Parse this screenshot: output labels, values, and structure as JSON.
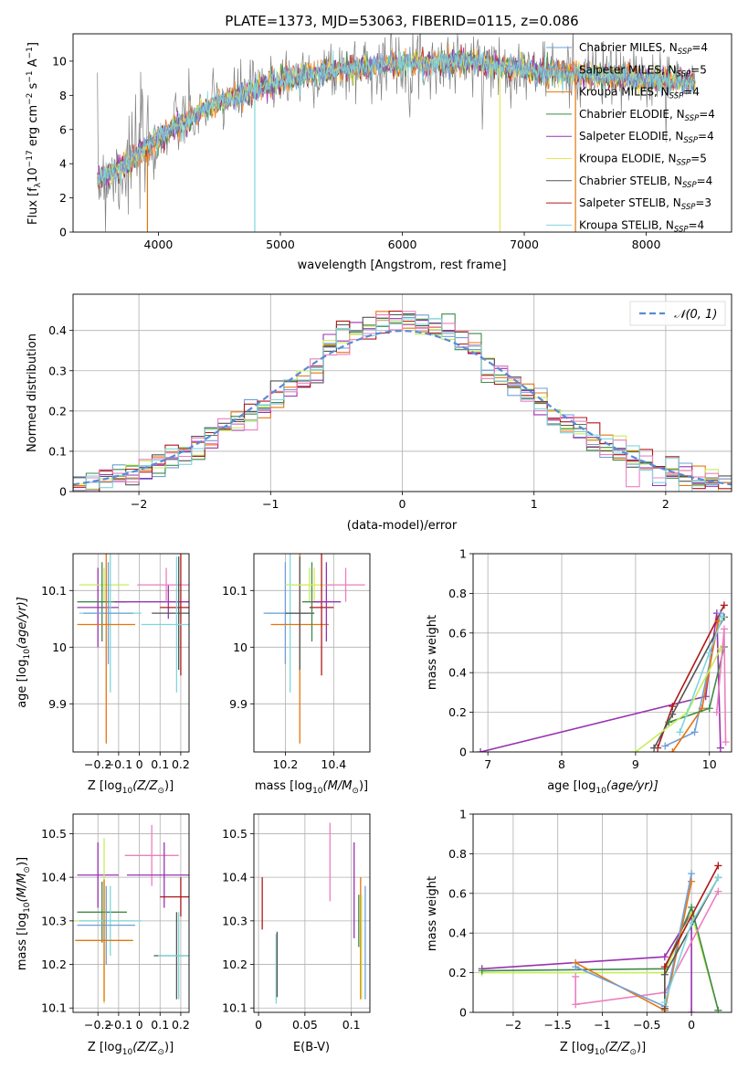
{
  "colors": {
    "Chabrier MILES": "#6f9fd8",
    "Salpeter MILES": "#ff8a3a",
    "Kroupa MILES": "#e8740c",
    "Chabrier ELODIE": "#3f8a4a",
    "Salpeter ELODIE": "#9932b0",
    "Kroupa ELODIE": "#e5e55a",
    "Chabrier STELIB": "#555555",
    "Salpeter STELIB": "#b01818",
    "Kroupa STELIB": "#7fd6dc",
    "pink": "#ec7fbf",
    "lime": "#c5ee5a",
    "grid": "#b0b0b0",
    "normal_curve": "#5b8ad6"
  },
  "chart_data": [
    {
      "id": "spectrum",
      "type": "line",
      "title": "PLATE=1373, MJD=53063, FIBERID=0115, z=0.086",
      "xlabel": "wavelength [Angstrom, rest frame]",
      "ylabel_parts": [
        "Flux [f",
        "λ",
        "10",
        "−17",
        " erg cm",
        "−2",
        " s",
        "−1",
        " A",
        "−1",
        "]"
      ],
      "xlim": [
        3300,
        8700
      ],
      "ylim": [
        0,
        11.6
      ],
      "xticks": [
        4000,
        5000,
        6000,
        7000,
        8000
      ],
      "yticks": [
        0,
        2,
        4,
        6,
        8,
        10
      ],
      "grid": false,
      "legend_position": "upper-right",
      "legend": [
        {
          "label": "Chabrier MILES, N",
          "sub": "SSP",
          "tail": "=4",
          "color_key": "Chabrier MILES"
        },
        {
          "label": "Salpeter MILES, N",
          "sub": "SSP",
          "tail": "=5",
          "color_key": "Salpeter MILES"
        },
        {
          "label": "Kroupa MILES, N",
          "sub": "SSP",
          "tail": "=4",
          "color_key": "Kroupa MILES"
        },
        {
          "label": "Chabrier ELODIE, N",
          "sub": "SSP",
          "tail": "=4",
          "color_key": "Chabrier ELODIE"
        },
        {
          "label": "Salpeter ELODIE, N",
          "sub": "SSP",
          "tail": "=4",
          "color_key": "Salpeter ELODIE"
        },
        {
          "label": "Kroupa ELODIE, N",
          "sub": "SSP",
          "tail": "=5",
          "color_key": "Kroupa ELODIE"
        },
        {
          "label": "Chabrier STELIB, N",
          "sub": "SSP",
          "tail": "=4",
          "color_key": "Chabrier STELIB"
        },
        {
          "label": "Salpeter STELIB, N",
          "sub": "SSP",
          "tail": "=3",
          "color_key": "Salpeter STELIB"
        },
        {
          "label": "Kroupa STELIB, N",
          "sub": "SSP",
          "tail": "=4",
          "color_key": "Kroupa STELIB"
        }
      ],
      "continuum": [
        [
          3500,
          3.1
        ],
        [
          3700,
          3.7
        ],
        [
          3900,
          5.0
        ],
        [
          4100,
          6.0
        ],
        [
          4300,
          6.8
        ],
        [
          4500,
          7.6
        ],
        [
          4700,
          8.1
        ],
        [
          5000,
          8.9
        ],
        [
          5300,
          9.3
        ],
        [
          5600,
          9.6
        ],
        [
          5900,
          9.8
        ],
        [
          6200,
          9.9
        ],
        [
          6500,
          10.0
        ],
        [
          6800,
          9.7
        ],
        [
          7100,
          9.4
        ],
        [
          7400,
          9.3
        ],
        [
          7700,
          9.1
        ],
        [
          8000,
          9.0
        ],
        [
          8300,
          8.8
        ],
        [
          8500,
          8.8
        ]
      ],
      "sharp_dips": [
        [
          3910,
          0.0
        ],
        [
          4790,
          0.0
        ],
        [
          6800,
          0.0
        ],
        [
          7420,
          0.0
        ]
      ]
    },
    {
      "id": "residuals",
      "type": "bar",
      "xlabel": "(data-model)/error",
      "ylabel": "Normed distribution",
      "xlim": [
        -2.5,
        2.5
      ],
      "ylim": [
        0,
        0.49
      ],
      "xticks": [
        -2,
        -1,
        0,
        1,
        2
      ],
      "yticks": [
        0.0,
        0.1,
        0.2,
        0.3,
        0.4
      ],
      "grid": true,
      "legend_position": "upper-right",
      "legend_label": "𝒩(0, 1)",
      "bin_width": 0.1,
      "bin_start": -2.5
    },
    {
      "id": "age_vs_Z",
      "type": "scatter",
      "xlabel_parts": [
        "Z [log",
        "10",
        "(Z/Z",
        "⊙",
        ")]"
      ],
      "ylabel_parts": [
        "age  [log",
        "10",
        "(age/yr)]"
      ],
      "xlim": [
        -0.32,
        0.24
      ],
      "ylim": [
        9.815,
        10.165
      ],
      "xticks": [
        -0.2,
        -0.1,
        0.0,
        0.1,
        0.2
      ],
      "yticks": [
        9.9,
        10.0,
        10.1
      ],
      "grid": true,
      "errorbars": [
        {
          "x": -0.2,
          "xerr": 0.1,
          "y": 10.07,
          "yerr": 0.07,
          "color_key": "Salpeter ELODIE"
        },
        {
          "x": -0.17,
          "xerr": 0.12,
          "y": 10.11,
          "yerr": 0.03,
          "color_key": "lime"
        },
        {
          "x": -0.18,
          "xerr": 0.12,
          "y": 10.08,
          "yerr": 0.07,
          "color_key": "Chabrier ELODIE"
        },
        {
          "x": -0.14,
          "xerr": 0.15,
          "y": 10.06,
          "yerr": 0.14,
          "color_key": "Kroupa STELIB"
        },
        {
          "x": -0.15,
          "xerr": 0.12,
          "y": 10.06,
          "yerr": 0.09,
          "color_key": "Chabrier MILES"
        },
        {
          "x": -0.16,
          "xerr": 0.14,
          "y": 10.04,
          "yerr": 0.21,
          "color_key": "Kroupa MILES"
        },
        {
          "x": 0.14,
          "xerr": 0.26,
          "y": 10.08,
          "yerr": 0.03,
          "color_key": "Salpeter ELODIE"
        },
        {
          "x": 0.13,
          "xerr": 0.14,
          "y": 10.11,
          "yerr": 0.03,
          "color_key": "pink"
        },
        {
          "x": 0.2,
          "xerr": 0.1,
          "y": 10.07,
          "yerr": 0.12,
          "color_key": "Salpeter STELIB"
        },
        {
          "x": 0.19,
          "xerr": 0.13,
          "y": 10.06,
          "yerr": 0.1,
          "color_key": "Chabrier STELIB"
        },
        {
          "x": 0.18,
          "xerr": 0.17,
          "y": 10.04,
          "yerr": 0.12,
          "color_key": "Kroupa STELIB"
        }
      ]
    },
    {
      "id": "age_vs_mass",
      "type": "scatter",
      "xlabel_parts": [
        "mass [log",
        "10",
        "(M/M",
        "⊙",
        ")]"
      ],
      "xlim": [
        10.07,
        10.55
      ],
      "ylim": [
        9.815,
        10.165
      ],
      "xticks": [
        10.2,
        10.4
      ],
      "yticks": [
        9.9,
        10.0,
        10.1
      ],
      "grid": true,
      "errorbars": [
        {
          "x": 10.22,
          "xerr": 0.1,
          "y": 10.06,
          "yerr": 0.14,
          "color_key": "Kroupa STELIB"
        },
        {
          "x": 10.2,
          "xerr": 0.09,
          "y": 10.06,
          "yerr": 0.09,
          "color_key": "Chabrier MILES"
        },
        {
          "x": 10.26,
          "xerr": 0.12,
          "y": 10.04,
          "yerr": 0.21,
          "color_key": "Kroupa MILES"
        },
        {
          "x": 10.26,
          "xerr": 0.06,
          "y": 10.06,
          "yerr": 0.1,
          "color_key": "Chabrier STELIB"
        },
        {
          "x": 10.3,
          "xerr": 0.1,
          "y": 10.11,
          "yerr": 0.03,
          "color_key": "lime"
        },
        {
          "x": 10.31,
          "xerr": 0.04,
          "y": 10.08,
          "yerr": 0.07,
          "color_key": "Chabrier ELODIE"
        },
        {
          "x": 10.32,
          "xerr": 0.04,
          "y": 10.11,
          "yerr": 0.03,
          "color_key": "Kroupa ELODIE"
        },
        {
          "x": 10.35,
          "xerr": 0.05,
          "y": 10.07,
          "yerr": 0.12,
          "color_key": "Salpeter STELIB"
        },
        {
          "x": 10.37,
          "xerr": 0.06,
          "y": 10.08,
          "yerr": 0.07,
          "color_key": "Salpeter ELODIE"
        },
        {
          "x": 10.45,
          "xerr": 0.08,
          "y": 10.11,
          "yerr": 0.03,
          "color_key": "pink"
        }
      ]
    },
    {
      "id": "weight_vs_age",
      "type": "line",
      "xlabel_parts": [
        "age  [log",
        "10",
        "(age/yr)]"
      ],
      "ylabel": "mass weight",
      "xlim": [
        6.8,
        10.3
      ],
      "ylim": [
        0,
        1.0
      ],
      "xticks": [
        7,
        8,
        9,
        10
      ],
      "yticks": [
        0.0,
        0.2,
        0.4,
        0.6,
        0.8,
        1.0
      ],
      "grid": true,
      "series": [
        {
          "color_key": "Salpeter ELODIE",
          "points": [
            [
              6.9,
              0.0
            ],
            [
              9.95,
              0.28
            ],
            [
              10.1,
              0.7
            ],
            [
              10.15,
              0.02
            ]
          ]
        },
        {
          "color_key": "Salpeter STELIB",
          "points": [
            [
              9.3,
              0.02
            ],
            [
              9.5,
              0.23
            ],
            [
              10.2,
              0.74
            ]
          ]
        },
        {
          "color_key": "Chabrier STELIB",
          "points": [
            [
              9.25,
              0.02
            ],
            [
              9.5,
              0.19
            ],
            [
              10.2,
              0.68
            ]
          ]
        },
        {
          "color_key": "Chabrier MILES",
          "points": [
            [
              9.4,
              0.03
            ],
            [
              9.8,
              0.1
            ],
            [
              10.15,
              0.7
            ]
          ]
        },
        {
          "color_key": "Kroupa MILES",
          "points": [
            [
              9.5,
              0.0
            ],
            [
              9.9,
              0.22
            ],
            [
              10.12,
              0.66
            ]
          ]
        },
        {
          "color_key": "Chabrier ELODIE",
          "points": [
            [
              9.45,
              0.15
            ],
            [
              10.0,
              0.22
            ],
            [
              10.2,
              0.53
            ]
          ]
        },
        {
          "color_key": "lime",
          "points": [
            [
              9.0,
              0.0
            ],
            [
              9.7,
              0.2
            ],
            [
              10.15,
              0.52
            ]
          ]
        },
        {
          "color_key": "pink",
          "points": [
            [
              10.1,
              0.2
            ],
            [
              10.2,
              0.62
            ],
            [
              10.22,
              0.05
            ]
          ]
        },
        {
          "color_key": "Kroupa STELIB",
          "points": [
            [
              9.6,
              0.1
            ],
            [
              10.0,
              0.5
            ],
            [
              10.18,
              0.68
            ]
          ]
        }
      ]
    },
    {
      "id": "mass_vs_Z",
      "type": "scatter",
      "xlabel_parts": [
        "Z [log",
        "10",
        "(Z/Z",
        "⊙",
        ")]"
      ],
      "ylabel_parts": [
        "mass [log",
        "10",
        "(M/M",
        "⊙",
        ")]"
      ],
      "xlim": [
        -0.32,
        0.24
      ],
      "ylim": [
        10.09,
        10.545
      ],
      "xticks": [
        -0.2,
        -0.1,
        0.0,
        0.1,
        0.2
      ],
      "yticks": [
        10.1,
        10.2,
        10.3,
        10.4,
        10.5
      ],
      "grid": true,
      "errorbars": [
        {
          "x": -0.2,
          "xerr": 0.1,
          "y": 10.405,
          "yerr": 0.075,
          "color_key": "Salpeter ELODIE"
        },
        {
          "x": -0.17,
          "xerr": 0.14,
          "y": 10.3,
          "yerr": 0.19,
          "color_key": "lime"
        },
        {
          "x": -0.18,
          "xerr": 0.12,
          "y": 10.32,
          "yerr": 0.07,
          "color_key": "Chabrier ELODIE"
        },
        {
          "x": -0.14,
          "xerr": 0.15,
          "y": 10.3,
          "yerr": 0.08,
          "color_key": "Kroupa STELIB"
        },
        {
          "x": -0.16,
          "xerr": 0.14,
          "y": 10.29,
          "yerr": 0.09,
          "color_key": "Chabrier MILES"
        },
        {
          "x": -0.17,
          "xerr": 0.14,
          "y": 10.255,
          "yerr": 0.14,
          "color_key": "Kroupa MILES"
        },
        {
          "x": 0.06,
          "xerr": 0.13,
          "y": 10.45,
          "yerr": 0.07,
          "color_key": "pink"
        },
        {
          "x": 0.12,
          "xerr": 0.18,
          "y": 10.405,
          "yerr": 0.075,
          "color_key": "Salpeter ELODIE"
        },
        {
          "x": 0.2,
          "xerr": 0.1,
          "y": 10.355,
          "yerr": 0.045,
          "color_key": "Salpeter STELIB"
        },
        {
          "x": 0.18,
          "xerr": 0.11,
          "y": 10.22,
          "yerr": 0.1,
          "color_key": "Chabrier STELIB"
        },
        {
          "x": 0.19,
          "xerr": 0.1,
          "y": 10.22,
          "yerr": 0.1,
          "color_key": "Kroupa STELIB"
        }
      ]
    },
    {
      "id": "mass_vs_ebv",
      "type": "scatter",
      "xlabel": "E(B-V)",
      "xlim": [
        -0.005,
        0.12
      ],
      "ylim": [
        10.09,
        10.545
      ],
      "xticks": [
        0.0,
        0.05,
        0.1
      ],
      "yticks": [
        10.1,
        10.2,
        10.3,
        10.4,
        10.5
      ],
      "grid": true,
      "errorbars": [
        {
          "x": 0.004,
          "xerr": 0.0,
          "y": 10.34,
          "yerr": 0.06,
          "color_key": "Salpeter STELIB"
        },
        {
          "x": 0.019,
          "xerr": 0.0,
          "y": 10.19,
          "yerr": 0.08,
          "color_key": "Kroupa STELIB"
        },
        {
          "x": 0.02,
          "xerr": 0.0,
          "y": 10.2,
          "yerr": 0.075,
          "color_key": "Chabrier STELIB"
        },
        {
          "x": 0.077,
          "xerr": 0.0,
          "y": 10.435,
          "yerr": 0.09,
          "color_key": "pink"
        },
        {
          "x": 0.103,
          "xerr": 0.0,
          "y": 10.37,
          "yerr": 0.11,
          "color_key": "Salpeter ELODIE"
        },
        {
          "x": 0.108,
          "xerr": 0.0,
          "y": 10.3,
          "yerr": 0.06,
          "color_key": "Chabrier ELODIE"
        },
        {
          "x": 0.11,
          "xerr": 0.0,
          "y": 10.26,
          "yerr": 0.14,
          "color_key": "Kroupa MILES"
        },
        {
          "x": 0.111,
          "xerr": 0.0,
          "y": 10.24,
          "yerr": 0.12,
          "color_key": "lime"
        },
        {
          "x": 0.115,
          "xerr": 0.0,
          "y": 10.25,
          "yerr": 0.13,
          "color_key": "Chabrier MILES"
        }
      ]
    },
    {
      "id": "weight_vs_Z",
      "type": "line",
      "xlabel_parts": [
        "Z [log",
        "10",
        "(Z/Z",
        "⊙",
        ")]"
      ],
      "ylabel": "mass weight",
      "xlim": [
        -2.45,
        0.45
      ],
      "ylim": [
        0,
        1.0
      ],
      "xticks": [
        -2.0,
        -1.5,
        -1.0,
        -0.5,
        0.0
      ],
      "yticks": [
        0.0,
        0.2,
        0.4,
        0.6,
        0.8,
        1.0
      ],
      "grid": true,
      "series": [
        {
          "color_key": "Salpeter ELODIE",
          "points": [
            [
              -2.35,
              0.22
            ],
            [
              -0.3,
              0.28
            ],
            [
              0.0,
              0.5
            ],
            [
              0.0,
              0.0
            ]
          ]
        },
        {
          "color_key": "lime",
          "points": [
            [
              -2.35,
              0.2
            ],
            [
              -0.3,
              0.2
            ],
            [
              0.0,
              0.5
            ],
            [
              0.3,
              0.01
            ]
          ]
        },
        {
          "color_key": "Chabrier ELODIE",
          "points": [
            [
              -2.35,
              0.21
            ],
            [
              -0.3,
              0.22
            ],
            [
              0.0,
              0.53
            ],
            [
              0.3,
              0.01
            ]
          ]
        },
        {
          "color_key": "pink",
          "points": [
            [
              -1.3,
              0.18
            ],
            [
              -1.3,
              0.04
            ],
            [
              -0.3,
              0.1
            ],
            [
              0.3,
              0.61
            ]
          ]
        },
        {
          "color_key": "Kroupa MILES",
          "points": [
            [
              -1.3,
              0.25
            ],
            [
              -0.3,
              0.01
            ],
            [
              0.0,
              0.66
            ]
          ]
        },
        {
          "color_key": "Chabrier MILES",
          "points": [
            [
              -1.3,
              0.23
            ],
            [
              -0.3,
              0.03
            ],
            [
              0.0,
              0.7
            ]
          ]
        },
        {
          "color_key": "Salpeter STELIB",
          "points": [
            [
              -0.3,
              0.02
            ],
            [
              -0.3,
              0.23
            ],
            [
              0.3,
              0.74
            ]
          ]
        },
        {
          "color_key": "Chabrier STELIB",
          "points": [
            [
              -0.3,
              0.02
            ],
            [
              -0.3,
              0.19
            ],
            [
              0.3,
              0.68
            ]
          ]
        },
        {
          "color_key": "Kroupa STELIB",
          "points": [
            [
              -0.3,
              0.05
            ],
            [
              0.0,
              0.45
            ],
            [
              0.3,
              0.68
            ]
          ]
        }
      ]
    }
  ]
}
